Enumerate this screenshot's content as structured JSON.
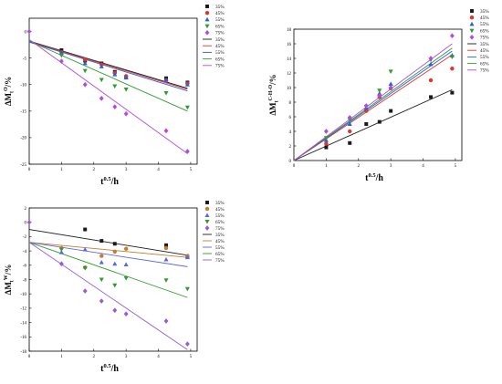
{
  "colors": {
    "s35": "#1a1a1a",
    "s45": "#e0342c",
    "s55": "#2a5fe0",
    "s65": "#2e9c2e",
    "s75": "#b44be0",
    "s45_bottom": "#c87a2e",
    "s55_bottom": "#5a66e8",
    "s75_bottom": "#9a5ad8"
  },
  "chart_data": [
    {
      "id": "top_left",
      "type": "scatter",
      "ylabel": "ΔMₜᴼ/%",
      "ylabel_main": "ΔM",
      "ylabel_sup": "O",
      "ylabel_sub": "t",
      "ylabel_tail": "/%",
      "xlabel": "t⁰·⁵/h",
      "xlabel_main": "t",
      "xlabel_sup": "0.5",
      "xlabel_tail": "/h",
      "xlim": [
        0,
        5.2
      ],
      "ylim": [
        -25,
        2.5
      ],
      "xticks": [
        0,
        1,
        2,
        3,
        4,
        5
      ],
      "yticks": [
        0,
        -5,
        -10,
        -15,
        -20,
        -25
      ],
      "legend_markers": [
        "35%",
        "45%",
        "55%",
        "65%",
        "75%"
      ],
      "legend_lines": [
        "35%",
        "45%",
        "55%",
        "65%",
        "75%"
      ],
      "series": [
        {
          "name": "35%",
          "marker": "square",
          "color_key": "s35",
          "points": [
            [
              1.0,
              -3.5
            ],
            [
              1.73,
              -5.5
            ],
            [
              2.24,
              -6.0
            ],
            [
              2.65,
              -7.6
            ],
            [
              3.0,
              -8.6
            ],
            [
              4.24,
              -8.8
            ],
            [
              4.9,
              -9.6
            ]
          ],
          "fit": [
            [
              0,
              -1.8
            ],
            [
              4.9,
              -10.7
            ]
          ]
        },
        {
          "name": "45%",
          "marker": "circle",
          "color_key": "s45",
          "points": [
            [
              1.0,
              -3.9
            ],
            [
              1.73,
              -5.3
            ],
            [
              2.24,
              -6.2
            ],
            [
              2.65,
              -7.8
            ],
            [
              3.0,
              -8.4
            ],
            [
              4.24,
              -9.2
            ],
            [
              4.9,
              -9.8
            ]
          ],
          "fit": [
            [
              0,
              -1.9
            ],
            [
              4.9,
              -10.9
            ]
          ]
        },
        {
          "name": "55%",
          "marker": "triangle-up",
          "color_key": "s55",
          "points": [
            [
              1.0,
              -4.0
            ],
            [
              1.73,
              -6.0
            ],
            [
              2.24,
              -6.6
            ],
            [
              2.65,
              -8.1
            ],
            [
              3.0,
              -8.7
            ],
            [
              4.24,
              -9.1
            ],
            [
              4.9,
              -10.0
            ]
          ],
          "fit": [
            [
              0,
              -2.0
            ],
            [
              4.9,
              -11.2
            ]
          ]
        },
        {
          "name": "65%",
          "marker": "triangle-down",
          "color_key": "s65",
          "points": [
            [
              1.0,
              -4.5
            ],
            [
              1.73,
              -7.4
            ],
            [
              2.24,
              -9.1
            ],
            [
              2.65,
              -10.3
            ],
            [
              3.0,
              -10.9
            ],
            [
              4.24,
              -11.6
            ],
            [
              4.9,
              -14.3
            ]
          ],
          "fit": [
            [
              0,
              -1.8
            ],
            [
              4.9,
              -15.0
            ]
          ]
        },
        {
          "name": "75%",
          "marker": "diamond",
          "color_key": "s75",
          "points": [
            [
              0.0,
              0.0
            ],
            [
              1.0,
              -5.6
            ],
            [
              1.73,
              -10.0
            ],
            [
              2.24,
              -12.6
            ],
            [
              2.65,
              -14.2
            ],
            [
              3.0,
              -15.5
            ],
            [
              4.24,
              -18.7
            ],
            [
              4.9,
              -22.6
            ]
          ],
          "fit": [
            [
              0,
              -1.5
            ],
            [
              4.9,
              -23.0
            ]
          ]
        }
      ]
    },
    {
      "id": "top_right",
      "type": "scatter",
      "ylabel": "ΔMₜᶜ⁻ᴴ⁻ᴼ/%",
      "ylabel_main": "ΔM",
      "ylabel_sup": "C-H-O",
      "ylabel_sub": "t",
      "ylabel_tail": "/%",
      "xlabel": "t⁰·⁵/h",
      "xlabel_main": "t",
      "xlabel_sup": "0.5",
      "xlabel_tail": "/h",
      "xlim": [
        0,
        5.2
      ],
      "ylim": [
        0,
        18
      ],
      "xticks": [
        0,
        1,
        2,
        3,
        4,
        5
      ],
      "yticks": [
        0,
        2,
        4,
        6,
        8,
        10,
        12,
        14,
        16,
        18
      ],
      "legend_markers": [
        "35%",
        "45%",
        "55%",
        "65%",
        "75%"
      ],
      "legend_lines": [
        "35%",
        "45%",
        "55%",
        "65%",
        "75%"
      ],
      "series": [
        {
          "name": "35%",
          "marker": "square",
          "color_key": "s35",
          "points": [
            [
              1.0,
              1.8
            ],
            [
              1.73,
              2.4
            ],
            [
              2.24,
              5.0
            ],
            [
              2.65,
              5.3
            ],
            [
              3.0,
              6.8
            ],
            [
              4.24,
              8.7
            ],
            [
              4.9,
              9.3
            ]
          ],
          "fit": [
            [
              0,
              0.0
            ],
            [
              4.9,
              9.7
            ]
          ]
        },
        {
          "name": "45%",
          "marker": "circle",
          "color_key": "s45",
          "points": [
            [
              1.0,
              2.3
            ],
            [
              1.73,
              4.0
            ],
            [
              2.24,
              6.8
            ],
            [
              2.65,
              8.7
            ],
            [
              3.0,
              9.9
            ],
            [
              4.24,
              11.0
            ],
            [
              4.9,
              12.6
            ]
          ],
          "fit": [
            [
              0,
              0.0
            ],
            [
              4.9,
              14.5
            ]
          ]
        },
        {
          "name": "55%",
          "marker": "triangle-up",
          "color_key": "s55",
          "points": [
            [
              1.0,
              2.8
            ],
            [
              1.73,
              5.0
            ],
            [
              2.24,
              7.2
            ],
            [
              2.65,
              9.2
            ],
            [
              3.0,
              10.5
            ],
            [
              4.24,
              13.2
            ],
            [
              4.9,
              14.4
            ]
          ],
          "fit": [
            [
              0,
              0.0
            ],
            [
              4.9,
              15.0
            ]
          ]
        },
        {
          "name": "65%",
          "marker": "triangle-down",
          "color_key": "s65",
          "points": [
            [
              1.0,
              3.1
            ],
            [
              1.73,
              5.6
            ],
            [
              2.24,
              7.4
            ],
            [
              2.65,
              9.6
            ],
            [
              3.0,
              12.2
            ],
            [
              4.24,
              13.8
            ],
            [
              4.9,
              14.2
            ]
          ],
          "fit": [
            [
              0,
              0.0
            ],
            [
              4.9,
              15.4
            ]
          ]
        },
        {
          "name": "75%",
          "marker": "diamond",
          "color_key": "s75",
          "points": [
            [
              1.0,
              4.0
            ],
            [
              1.73,
              5.9
            ],
            [
              2.24,
              7.5
            ],
            [
              2.65,
              8.9
            ],
            [
              3.0,
              10.0
            ],
            [
              4.24,
              14.0
            ],
            [
              4.9,
              17.1
            ]
          ],
          "fit": [
            [
              0,
              0.0
            ],
            [
              4.9,
              16.0
            ]
          ]
        }
      ]
    },
    {
      "id": "bottom_left",
      "type": "scatter",
      "ylabel": "ΔMₜᵂ/%",
      "ylabel_main": "ΔM",
      "ylabel_sup": "W",
      "ylabel_sub": "t",
      "ylabel_tail": "/%",
      "xlabel": "t⁰·⁵/h",
      "xlabel_main": "t",
      "xlabel_sup": "0.5",
      "xlabel_tail": "/h",
      "xlim": [
        0,
        5.2
      ],
      "ylim": [
        -18,
        2
      ],
      "xticks": [
        0,
        1,
        2,
        3,
        4,
        5
      ],
      "yticks": [
        2,
        0,
        -2,
        -4,
        -6,
        -8,
        -10,
        -12,
        -14,
        -16,
        -18
      ],
      "legend_markers": [
        "35%",
        "45%",
        "55%",
        "65%",
        "75%"
      ],
      "legend_lines": [
        "35%",
        "45%",
        "55%",
        "65%",
        "75%"
      ],
      "series": [
        {
          "name": "35%",
          "marker": "square",
          "color_key": "s35",
          "points": [
            [
              1.73,
              -1.0
            ],
            [
              2.24,
              -2.6
            ],
            [
              2.65,
              -3.0
            ],
            [
              4.24,
              -3.2
            ],
            [
              4.9,
              -4.8
            ]
          ],
          "fit": [
            [
              0,
              -1.0
            ],
            [
              4.9,
              -4.6
            ]
          ]
        },
        {
          "name": "45%",
          "marker": "circle",
          "color_key": "s45_bottom",
          "points": [
            [
              1.0,
              -3.6
            ],
            [
              1.73,
              -6.3
            ],
            [
              2.24,
              -4.7
            ],
            [
              2.65,
              -4.1
            ],
            [
              3.0,
              -3.7
            ],
            [
              4.24,
              -3.6
            ],
            [
              4.9,
              -4.7
            ]
          ],
          "fit": [
            [
              0,
              -2.8
            ],
            [
              4.9,
              -4.9
            ]
          ]
        },
        {
          "name": "55%",
          "marker": "triangle-up",
          "color_key": "s55_bottom",
          "points": [
            [
              1.0,
              -4.2
            ],
            [
              1.73,
              -3.8
            ],
            [
              2.24,
              -5.6
            ],
            [
              2.65,
              -5.8
            ],
            [
              3.0,
              -5.9
            ],
            [
              4.24,
              -5.2
            ],
            [
              4.9,
              -4.9
            ]
          ],
          "fit": [
            [
              0,
              -2.8
            ],
            [
              4.9,
              -6.2
            ]
          ]
        },
        {
          "name": "65%",
          "marker": "triangle-down",
          "color_key": "s65",
          "points": [
            [
              1.0,
              -3.8
            ],
            [
              1.73,
              -6.4
            ],
            [
              2.24,
              -8.0
            ],
            [
              2.65,
              -8.8
            ],
            [
              3.0,
              -7.8
            ],
            [
              4.24,
              -8.1
            ],
            [
              4.9,
              -9.3
            ]
          ],
          "fit": [
            [
              0,
              -2.8
            ],
            [
              4.9,
              -10.5
            ]
          ]
        },
        {
          "name": "75%",
          "marker": "diamond",
          "color_key": "s75_bottom",
          "points": [
            [
              0.0,
              0.0
            ],
            [
              1.0,
              -5.8
            ],
            [
              1.73,
              -9.6
            ],
            [
              2.24,
              -11.0
            ],
            [
              2.65,
              -12.3
            ],
            [
              3.0,
              -12.8
            ],
            [
              4.24,
              -13.8
            ],
            [
              4.9,
              -17.0
            ]
          ],
          "fit": [
            [
              0,
              -2.8
            ],
            [
              4.9,
              -17.8
            ]
          ]
        }
      ]
    }
  ]
}
